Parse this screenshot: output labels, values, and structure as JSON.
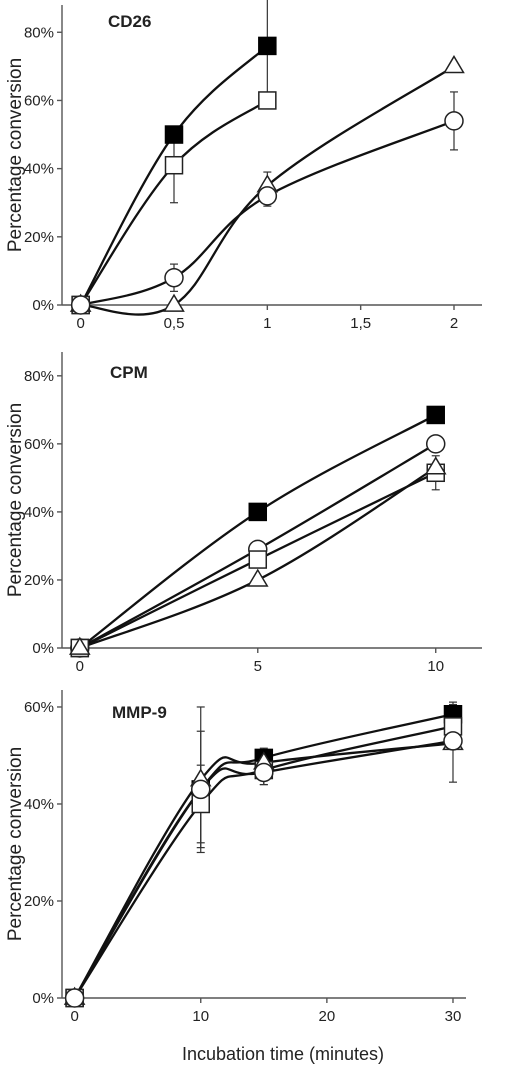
{
  "figure": {
    "x_axis_title": "Incubation time (minutes)"
  },
  "chart_data": [
    {
      "type": "line",
      "title": "CD26",
      "xlabel": "",
      "ylabel": "Percentage conversion",
      "xlim": [
        -0.1,
        2.15
      ],
      "ylim": [
        0,
        0.88
      ],
      "xticks": [
        0,
        0.5,
        1,
        1.5,
        2
      ],
      "xtick_labels": [
        "0",
        "0,5",
        "1",
        "1,5",
        "2"
      ],
      "yticks": [
        0,
        0.2,
        0.4,
        0.6,
        0.8
      ],
      "ytick_labels": [
        "0%",
        "20%",
        "40%",
        "60%",
        "80%"
      ],
      "grid": false,
      "series": [
        {
          "marker": "filled-square",
          "x": [
            0,
            0.5,
            1
          ],
          "y": [
            0,
            0.5,
            0.76
          ],
          "err": [
            0,
            0,
            0.18
          ]
        },
        {
          "marker": "open-square",
          "x": [
            0,
            0.5,
            1
          ],
          "y": [
            0,
            0.41,
            0.6
          ],
          "err": [
            0,
            0.11,
            0
          ]
        },
        {
          "marker": "open-triangle",
          "x": [
            0,
            0.5,
            1,
            2
          ],
          "y": [
            0,
            0,
            0.35,
            0.7
          ],
          "err": [
            0,
            0,
            0.04,
            0
          ]
        },
        {
          "marker": "open-circle",
          "x": [
            0,
            0.5,
            1,
            2
          ],
          "y": [
            0,
            0.08,
            0.32,
            0.54
          ],
          "err": [
            0,
            0.04,
            0.03,
            0.085
          ]
        }
      ]
    },
    {
      "type": "line",
      "title": "CPM",
      "xlabel": "",
      "ylabel": "Percentage conversion",
      "xlim": [
        -0.5,
        11.3
      ],
      "ylim": [
        0,
        0.87
      ],
      "xticks": [
        0,
        5,
        10
      ],
      "xtick_labels": [
        "0",
        "5",
        "10"
      ],
      "yticks": [
        0,
        0.2,
        0.4,
        0.6,
        0.8
      ],
      "ytick_labels": [
        "0%",
        "20%",
        "40%",
        "60%",
        "80%"
      ],
      "grid": false,
      "series": [
        {
          "marker": "filled-square",
          "x": [
            0,
            5,
            10
          ],
          "y": [
            0,
            0.4,
            0.685
          ],
          "err": [
            0,
            0,
            0
          ]
        },
        {
          "marker": "open-circle",
          "x": [
            0,
            5,
            10
          ],
          "y": [
            0,
            0.29,
            0.6
          ],
          "err": [
            0,
            0.02,
            0
          ]
        },
        {
          "marker": "open-square",
          "x": [
            0,
            5,
            10
          ],
          "y": [
            0,
            0.26,
            0.515
          ],
          "err": [
            0,
            0.02,
            0.05
          ]
        },
        {
          "marker": "open-triangle",
          "x": [
            0,
            5,
            10
          ],
          "y": [
            0,
            0.2,
            0.53
          ],
          "err": [
            0,
            0,
            0
          ]
        }
      ]
    },
    {
      "type": "line",
      "title": "MMP-9",
      "xlabel": "Incubation time (minutes)",
      "ylabel": "Percentage conversion",
      "xlim": [
        -1,
        32.3
      ],
      "ylim": [
        0,
        0.635
      ],
      "xticks": [
        0,
        10,
        20,
        30
      ],
      "xtick_labels": [
        "0",
        "10",
        "20",
        "30"
      ],
      "yticks": [
        0,
        0.2,
        0.4,
        0.6
      ],
      "ytick_labels": [
        "0%",
        "20%",
        "40%",
        "60%"
      ],
      "grid": false,
      "series": [
        {
          "marker": "filled-square",
          "x": [
            0,
            10,
            15,
            30
          ],
          "y": [
            0,
            0.43,
            0.495,
            0.585
          ],
          "err": [
            0,
            0.12,
            0.02,
            0.025
          ]
        },
        {
          "marker": "open-square",
          "x": [
            0,
            10,
            15,
            30
          ],
          "y": [
            0,
            0.4,
            0.47,
            0.56
          ],
          "err": [
            0,
            0.08,
            0.03,
            0
          ]
        },
        {
          "marker": "open-triangle",
          "x": [
            0,
            10,
            15,
            30
          ],
          "y": [
            0,
            0.45,
            0.485,
            0.525
          ],
          "err": [
            0,
            0.15,
            0,
            0.08
          ]
        },
        {
          "marker": "open-circle",
          "x": [
            0,
            10,
            15,
            30
          ],
          "y": [
            0,
            0.43,
            0.465,
            0.53
          ],
          "err": [
            0,
            0,
            0.025,
            0
          ]
        }
      ]
    }
  ]
}
